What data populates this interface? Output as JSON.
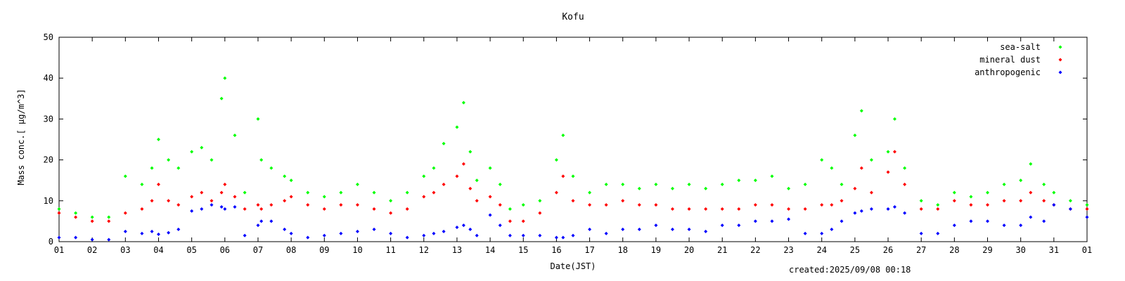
{
  "chart_data": {
    "type": "scatter",
    "title": "Kofu",
    "xlabel": "Date(JST)",
    "ylabel": "Mass conc.[ μg/m^3]",
    "xlim": [
      1,
      32
    ],
    "ylim": [
      0,
      50
    ],
    "grid": false,
    "legend_position": "top-right",
    "x_ticks": [
      "01",
      "02",
      "03",
      "04",
      "05",
      "06",
      "07",
      "08",
      "09",
      "10",
      "11",
      "12",
      "13",
      "14",
      "15",
      "16",
      "17",
      "18",
      "19",
      "20",
      "21",
      "22",
      "23",
      "24",
      "25",
      "26",
      "27",
      "28",
      "29",
      "30",
      "31",
      "01"
    ],
    "y_ticks": [
      "0",
      "10",
      "20",
      "30",
      "40",
      "50"
    ],
    "footer": "created:2025/09/08 00:18",
    "series": [
      {
        "name": "sea-salt",
        "color": "#00ff00",
        "x": [
          1,
          1.5,
          2,
          2.5,
          3,
          3.5,
          3.8,
          4,
          4.3,
          4.6,
          5,
          5.3,
          5.6,
          5.9,
          6,
          6.3,
          6.6,
          7,
          7.1,
          7.4,
          7.8,
          8,
          8.5,
          9,
          9.5,
          10,
          10.5,
          11,
          11.5,
          12,
          12.3,
          12.6,
          13,
          13.2,
          13.4,
          13.6,
          14,
          14.3,
          14.6,
          15,
          15.5,
          16,
          16.2,
          16.5,
          17,
          17.5,
          18,
          18.5,
          19,
          19.5,
          20,
          20.5,
          21,
          21.5,
          22,
          22.5,
          23,
          23.5,
          24,
          24.3,
          24.6,
          25,
          25.2,
          25.5,
          26,
          26.2,
          26.5,
          27,
          27.5,
          28,
          28.5,
          29,
          29.5,
          30,
          30.3,
          30.7,
          31,
          31.5,
          32
        ],
        "y": [
          8,
          7,
          6,
          6,
          16,
          14,
          18,
          25,
          20,
          18,
          22,
          23,
          20,
          35,
          40,
          26,
          12,
          30,
          20,
          18,
          16,
          15,
          12,
          11,
          12,
          14,
          12,
          10,
          12,
          16,
          18,
          24,
          28,
          34,
          22,
          15,
          18,
          14,
          8,
          9,
          10,
          20,
          26,
          16,
          12,
          14,
          14,
          13,
          14,
          13,
          14,
          13,
          14,
          15,
          15,
          16,
          13,
          14,
          20,
          18,
          14,
          26,
          32,
          20,
          22,
          30,
          18,
          10,
          9,
          12,
          11,
          12,
          14,
          15,
          19,
          14,
          12,
          10,
          9
        ]
      },
      {
        "name": "mineral dust",
        "color": "#ff0000",
        "x": [
          1,
          1.5,
          2,
          2.5,
          3,
          3.5,
          3.8,
          4,
          4.3,
          4.6,
          5,
          5.3,
          5.6,
          5.9,
          6,
          6.3,
          6.6,
          7,
          7.1,
          7.4,
          7.8,
          8,
          8.5,
          9,
          9.5,
          10,
          10.5,
          11,
          11.5,
          12,
          12.3,
          12.6,
          13,
          13.2,
          13.4,
          13.6,
          14,
          14.3,
          14.6,
          15,
          15.5,
          16,
          16.2,
          16.5,
          17,
          17.5,
          18,
          18.5,
          19,
          19.5,
          20,
          20.5,
          21,
          21.5,
          22,
          22.5,
          23,
          23.5,
          24,
          24.3,
          24.6,
          25,
          25.2,
          25.5,
          26,
          26.2,
          26.5,
          27,
          27.5,
          28,
          28.5,
          29,
          29.5,
          30,
          30.3,
          30.7,
          31,
          31.5,
          32
        ],
        "y": [
          7,
          6,
          5,
          5,
          7,
          8,
          10,
          14,
          10,
          9,
          11,
          12,
          10,
          12,
          14,
          11,
          8,
          9,
          8,
          9,
          10,
          11,
          9,
          8,
          9,
          9,
          8,
          7,
          8,
          11,
          12,
          14,
          16,
          19,
          13,
          10,
          11,
          9,
          5,
          5,
          7,
          12,
          16,
          10,
          9,
          9,
          10,
          9,
          9,
          8,
          8,
          8,
          8,
          8,
          9,
          9,
          8,
          8,
          9,
          9,
          10,
          13,
          18,
          12,
          17,
          22,
          14,
          8,
          8,
          10,
          9,
          9,
          10,
          10,
          12,
          10,
          9,
          8,
          8
        ]
      },
      {
        "name": "anthropogenic",
        "color": "#0000ff",
        "x": [
          1,
          1.5,
          2,
          2.5,
          3,
          3.5,
          3.8,
          4,
          4.3,
          4.6,
          5,
          5.3,
          5.6,
          5.9,
          6,
          6.3,
          6.6,
          7,
          7.1,
          7.4,
          7.8,
          8,
          8.5,
          9,
          9.5,
          10,
          10.5,
          11,
          11.5,
          12,
          12.3,
          12.6,
          13,
          13.2,
          13.4,
          13.6,
          14,
          14.3,
          14.6,
          15,
          15.5,
          16,
          16.2,
          16.5,
          17,
          17.5,
          18,
          18.5,
          19,
          19.5,
          20,
          20.5,
          21,
          21.5,
          22,
          22.5,
          23,
          23.5,
          24,
          24.3,
          24.6,
          25,
          25.2,
          25.5,
          26,
          26.2,
          26.5,
          27,
          27.5,
          28,
          28.5,
          29,
          29.5,
          30,
          30.3,
          30.7,
          31,
          31.5,
          32
        ],
        "y": [
          1,
          1,
          0.5,
          0.5,
          2.5,
          2,
          2.5,
          1.8,
          2.2,
          3,
          7.5,
          8,
          9,
          8.5,
          8,
          8.5,
          1.5,
          4,
          5,
          5,
          3,
          2,
          1,
          1.5,
          2,
          2.5,
          3,
          2,
          1,
          1.5,
          2,
          2.5,
          3.5,
          4,
          3,
          1.5,
          6.5,
          4,
          1.5,
          1.5,
          1.5,
          1,
          1,
          1.5,
          3,
          2,
          3,
          3,
          4,
          3,
          3,
          2.5,
          4,
          4,
          5,
          5,
          5.5,
          2,
          2,
          3,
          5,
          7,
          7.5,
          8,
          8,
          8.5,
          7,
          2,
          2,
          4,
          5,
          5,
          4,
          4,
          6,
          5,
          9,
          8,
          6
        ]
      }
    ]
  }
}
